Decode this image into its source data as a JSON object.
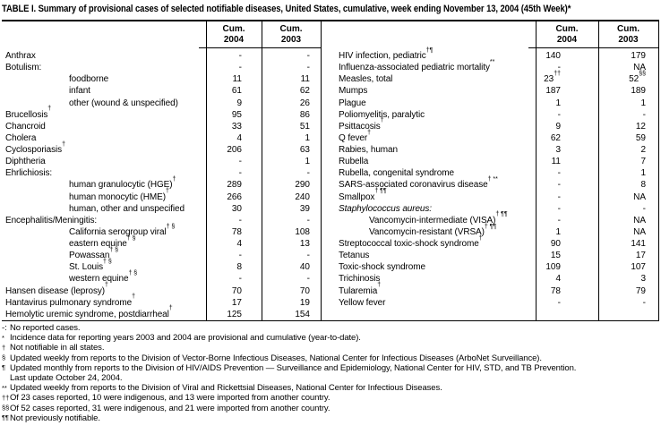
{
  "title": "TABLE I. Summary of provisional cases of selected notifiable diseases, United States, cumulative, week ending November 13, 2004 (45th Week)*",
  "table": {
    "header": {
      "cum": "Cum.",
      "y2004": "2004",
      "y2003": "2003"
    },
    "left_rows": [
      {
        "label": "Anthrax",
        "v2004": "-",
        "v2003": "-"
      },
      {
        "label": "Botulism:",
        "v2004": "-",
        "v2003": "-"
      },
      {
        "label": "foodborne",
        "indent": true,
        "v2004": "11",
        "v2003": "11"
      },
      {
        "label": "infant",
        "indent": true,
        "v2004": "61",
        "v2003": "62"
      },
      {
        "label": "other (wound & unspecified)",
        "indent": true,
        "v2004": "9",
        "v2003": "26"
      },
      {
        "label": "Brucellosis",
        "sup": "†",
        "v2004": "95",
        "v2003": "86"
      },
      {
        "label": "Chancroid",
        "v2004": "33",
        "v2003": "51"
      },
      {
        "label": "Cholera",
        "v2004": "4",
        "v2003": "1"
      },
      {
        "label": "Cyclosporiasis",
        "sup": "†",
        "v2004": "206",
        "v2003": "63"
      },
      {
        "label": "Diphtheria",
        "v2004": "-",
        "v2003": "1"
      },
      {
        "label": "Ehrlichiosis:",
        "v2004": "-",
        "v2003": "-"
      },
      {
        "label": "human granulocytic (HGE)",
        "sup": "†",
        "indent": true,
        "v2004": "289",
        "v2003": "290"
      },
      {
        "label": "human monocytic (HME)",
        "sup": "†",
        "indent": true,
        "v2004": "266",
        "v2003": "240"
      },
      {
        "label": "human, other and unspecified",
        "indent": true,
        "v2004": "30",
        "v2003": "39"
      },
      {
        "label": "Encephalitis/Meningitis:",
        "v2004": "-",
        "v2003": "-"
      },
      {
        "label": "California serogroup viral",
        "sup": "† §",
        "indent": true,
        "v2004": "78",
        "v2003": "108"
      },
      {
        "label": "eastern equine",
        "sup": "† §",
        "indent": true,
        "v2004": "4",
        "v2003": "13"
      },
      {
        "label": "Powassan",
        "sup": "† §",
        "indent": true,
        "v2004": "-",
        "v2003": "-"
      },
      {
        "label": "St. Louis",
        "sup": "† §",
        "indent": true,
        "v2004": "8",
        "v2003": "40"
      },
      {
        "label": "western equine",
        "sup": "† §",
        "indent": true,
        "v2004": "-",
        "v2003": "-"
      },
      {
        "label": "Hansen disease (leprosy)",
        "sup": "†",
        "v2004": "70",
        "v2003": "70"
      },
      {
        "label": "Hantavirus pulmonary syndrome",
        "sup": "†",
        "v2004": "17",
        "v2003": "19"
      },
      {
        "label": "Hemolytic uremic syndrome, postdiarrheal",
        "sup": "†",
        "v2004": "125",
        "v2003": "154"
      }
    ],
    "right_rows": [
      {
        "label": "HIV infection, pediatric",
        "sup": "†¶",
        "v2004": "140",
        "v2003": "179"
      },
      {
        "label": "Influenza-associated pediatric mortality",
        "sup": "**",
        "v2004": "-",
        "v2003": "NA"
      },
      {
        "label": "Measles, total",
        "v2004": "23",
        "v2004_sup": "††",
        "v2003": "52",
        "v2003_sup": "§§"
      },
      {
        "label": "Mumps",
        "v2004": "187",
        "v2003": "189"
      },
      {
        "label": "Plague",
        "v2004": "1",
        "v2003": "1"
      },
      {
        "label": "Poliomyelitis, paralytic",
        "v2004": "-",
        "v2003": "-"
      },
      {
        "label": "Psittacosis",
        "sup": "†",
        "v2004": "9",
        "v2003": "12"
      },
      {
        "label": "Q fever",
        "sup": "†",
        "v2004": "62",
        "v2003": "59"
      },
      {
        "label": "Rabies, human",
        "v2004": "3",
        "v2003": "2"
      },
      {
        "label": "Rubella",
        "v2004": "11",
        "v2003": "7"
      },
      {
        "label": "Rubella, congenital syndrome",
        "v2004": "-",
        "v2003": "1"
      },
      {
        "label": "SARS-associated coronavirus disease",
        "sup": "† **",
        "v2004": "-",
        "v2003": "8"
      },
      {
        "label": "Smallpox",
        "sup": "† ¶¶",
        "v2004": "-",
        "v2003": "NA"
      },
      {
        "label": "Staphylococcus aureus:",
        "italic": true,
        "v2004": "-",
        "v2003": "-"
      },
      {
        "label": "Vancomycin-intermediate (VISA)",
        "sup": "† ¶¶",
        "indent": true,
        "v2004": "-",
        "v2003": "NA"
      },
      {
        "label": "Vancomycin-resistant (VRSA)",
        "sup": "† ¶¶",
        "indent": true,
        "v2004": "1",
        "v2003": "NA"
      },
      {
        "label": "Streptococcal toxic-shock syndrome",
        "sup": "†",
        "v2004": "90",
        "v2003": "141"
      },
      {
        "label": "Tetanus",
        "v2004": "15",
        "v2003": "17"
      },
      {
        "label": "Toxic-shock syndrome",
        "v2004": "109",
        "v2003": "107"
      },
      {
        "label": "Trichinosis",
        "v2004": "4",
        "v2003": "3"
      },
      {
        "label": "Tularemia",
        "sup": "†",
        "v2004": "78",
        "v2003": "79"
      },
      {
        "label": "Yellow fever",
        "v2004": "-",
        "v2003": "-"
      }
    ]
  },
  "footnotes": [
    {
      "marker": "-:",
      "sup": false,
      "text": "No reported cases."
    },
    {
      "marker": "*",
      "sup": true,
      "text": "Incidence data for reporting years 2003 and 2004 are provisional and cumulative (year-to-date)."
    },
    {
      "marker": "†",
      "sup": true,
      "text": "Not notifiable in all states."
    },
    {
      "marker": "§",
      "sup": true,
      "text": "Updated weekly from reports to the Division of Vector-Borne Infectious Diseases, National Center for Infectious Diseases (ArboNet Surveillance)."
    },
    {
      "marker": "¶",
      "sup": true,
      "text": "Updated monthly from reports to the Division of HIV/AIDS Prevention — Surveillance and Epidemiology, National Center for HIV, STD, and TB Prevention."
    },
    {
      "marker": "",
      "sup": false,
      "text": "Last update October 24, 2004."
    },
    {
      "marker": "**",
      "sup": true,
      "text": "Updated weekly from reports to the Division of Viral and Rickettsial Diseases, National Center for Infectious Diseases."
    },
    {
      "marker": "††",
      "sup": true,
      "text": "Of 23 cases reported, 10 were indigenous, and 13 were imported from another country."
    },
    {
      "marker": "§§",
      "sup": true,
      "text": "Of 52 cases reported, 31 were indigenous, and 21 were imported from another country."
    },
    {
      "marker": "¶¶",
      "sup": true,
      "text": "Not previously notifiable."
    }
  ]
}
